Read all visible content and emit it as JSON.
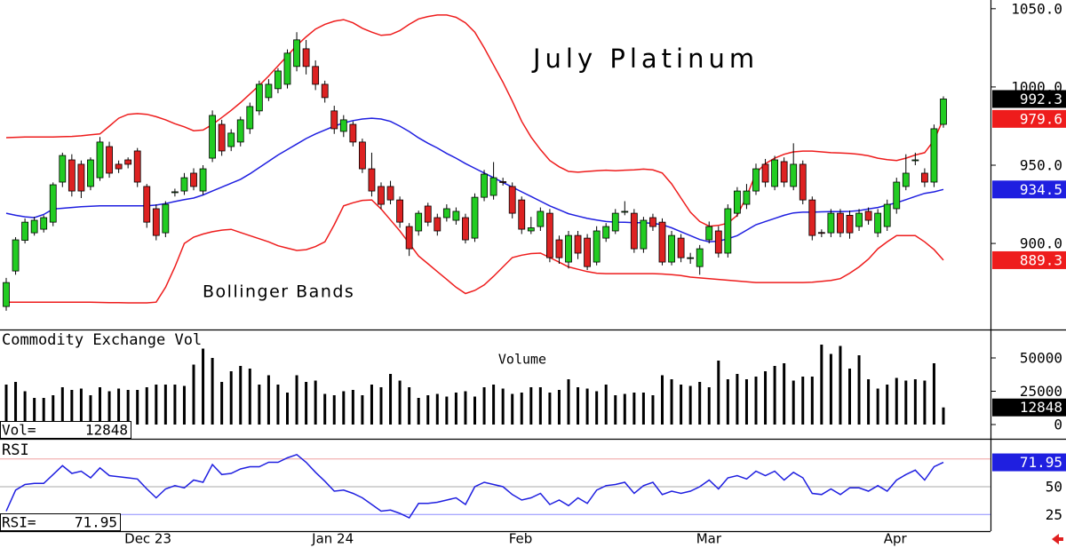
{
  "chart_data": [
    {
      "type": "candlestick",
      "title": "July Platinum",
      "annotation": "Bollinger Bands",
      "categories": [
        null,
        null,
        null,
        null,
        null,
        null,
        null,
        null,
        null,
        null,
        null,
        null,
        null,
        "Dec 23",
        null,
        null,
        null,
        null,
        null,
        null,
        null,
        null,
        null,
        null,
        null,
        null,
        null,
        null,
        null,
        null,
        null,
        null,
        null,
        "Jan 24",
        null,
        null,
        null,
        null,
        null,
        null,
        null,
        null,
        null,
        null,
        null,
        null,
        null,
        null,
        null,
        null,
        null,
        null,
        null,
        null,
        "Feb",
        null,
        null,
        null,
        null,
        null,
        null,
        null,
        null,
        null,
        null,
        null,
        null,
        null,
        null,
        null,
        null,
        null,
        null,
        null,
        "Mar",
        null,
        null,
        null,
        null,
        null,
        null,
        null,
        null,
        null,
        null,
        null,
        null,
        null,
        null,
        null,
        null,
        null,
        null,
        null,
        "Apr",
        null,
        null,
        null,
        null,
        null,
        null
      ],
      "open": [
        859.7,
        882.4,
        902,
        906.8,
        909.1,
        913.6,
        939.2,
        953.4,
        950.6,
        936.4,
        942,
        961.9,
        950.6,
        953.4,
        959.1,
        936.4,
        922.2,
        906.8,
        932.5,
        933.5,
        944.9,
        933.5,
        954.5,
        976.1,
        961.9,
        964.8,
        973.3,
        984.7,
        993.2,
        998.9,
        1001.7,
        1013.1,
        1024.4,
        1013.1,
        1001.7,
        984.7,
        971.6,
        976.1,
        964.8,
        947.7,
        936.4,
        936.4,
        927.8,
        910.8,
        908,
        923.9,
        916.5,
        916.5,
        914.8,
        916.5,
        903.4,
        929.5,
        930.7,
        939.5,
        936.4,
        927.8,
        908,
        910.8,
        919.3,
        902.3,
        888.1,
        905.1,
        903.4,
        888.1,
        903.4,
        908,
        920.3,
        919.3,
        896.6,
        916.5,
        913.6,
        888.1,
        903.4,
        890.7,
        885.2,
        902.3,
        908,
        893.8,
        919.3,
        925,
        933.5,
        950.6,
        936.4,
        952.3,
        936.4,
        950.6,
        927.8,
        907,
        906.8,
        919.3,
        918,
        910.8,
        920.5,
        906.8,
        910.8,
        922.2,
        936.4,
        953.2,
        944.9,
        939.2,
        976.1
      ],
      "high": [
        878,
        904,
        916,
        917,
        918,
        939,
        958,
        957,
        953,
        955,
        968,
        965,
        953,
        955,
        961,
        938,
        925,
        927,
        935,
        945,
        948,
        950,
        985,
        979,
        973,
        981,
        990,
        1004,
        1005,
        1012,
        1024,
        1035,
        1030,
        1017,
        1004,
        988,
        982,
        978,
        967,
        958,
        939,
        940,
        930,
        913,
        921,
        926,
        919,
        925,
        923,
        919,
        932,
        947,
        952,
        942,
        939,
        930,
        917,
        923,
        922,
        905,
        908,
        908,
        906,
        911,
        913,
        922,
        927,
        922,
        917,
        919,
        916,
        908,
        906,
        894,
        899,
        914,
        911,
        925,
        936,
        938,
        951,
        954,
        956,
        955,
        964,
        953,
        930,
        909,
        922,
        922,
        921,
        922,
        923,
        922,
        928,
        942,
        957,
        958,
        948,
        976,
        994
      ],
      "low": [
        857,
        880,
        900,
        905,
        907,
        911,
        936,
        930,
        929,
        934,
        940,
        942,
        945,
        948,
        936,
        910,
        902,
        904,
        930,
        931,
        934,
        931,
        952,
        956,
        959,
        962,
        970,
        982,
        991,
        996,
        999,
        1010,
        1008,
        998,
        990,
        970,
        968,
        962,
        945,
        930,
        922,
        925,
        910,
        892,
        905,
        911,
        905,
        914,
        912,
        900,
        901,
        927,
        928,
        937,
        916,
        906,
        906,
        908,
        888,
        887,
        884,
        890,
        883,
        886,
        901,
        906,
        918,
        894,
        894,
        908,
        886,
        886,
        888,
        887,
        880,
        900,
        891,
        891,
        917,
        922,
        931,
        936,
        934,
        936,
        934,
        925,
        902,
        904,
        904,
        904,
        903,
        908,
        912,
        904,
        908,
        919,
        934,
        950,
        936,
        936,
        974
      ],
      "close": [
        875,
        902.3,
        913.6,
        914.8,
        916.5,
        937.5,
        956.2,
        933.5,
        933.5,
        953.4,
        964.8,
        944.9,
        947.7,
        950.6,
        939.2,
        913.6,
        905.1,
        925,
        933,
        942,
        936.4,
        947.7,
        981.8,
        959.1,
        970.5,
        979,
        987.5,
        1001.7,
        1001.7,
        1010.2,
        1021.6,
        1030.1,
        1013.1,
        1001.7,
        993.2,
        973.3,
        979,
        964.8,
        947.7,
        933.5,
        925,
        927.8,
        913.6,
        896.6,
        919.3,
        913.6,
        908,
        922.2,
        920.5,
        902.3,
        929.5,
        944.3,
        942,
        939.2,
        919.3,
        909.1,
        910,
        920.5,
        890.9,
        890.9,
        905.1,
        893.8,
        885.2,
        908,
        910.8,
        919.3,
        920.5,
        896.6,
        914.8,
        910.8,
        888.1,
        905.1,
        890.9,
        890.9,
        896.6,
        910.8,
        893.8,
        922.2,
        933.5,
        933.5,
        947.7,
        939.2,
        953.4,
        939.2,
        950.6,
        927.8,
        905.1,
        906.8,
        919.3,
        906.8,
        906.8,
        919.3,
        914.8,
        919.3,
        925,
        939.2,
        944.9,
        953.4,
        939.2,
        973.3,
        992.3
      ],
      "up_color": "#22cc22",
      "down_color": "#dd2222",
      "last_color": "#000000",
      "series": [
        {
          "color": "#ee1c1c",
          "values": [
            967.6,
            967.8,
            968.0,
            968.0,
            968.0,
            968.0,
            968.2,
            968.4,
            968.8,
            969.4,
            970.0,
            975.0,
            980.0,
            982.5,
            983.0,
            982.5,
            981.0,
            979.0,
            976.5,
            974.5,
            972.0,
            972.5,
            976.0,
            980.5,
            985.0,
            990.0,
            995.5,
            1001.0,
            1007.0,
            1013.5,
            1020.0,
            1026.5,
            1032.0,
            1037.0,
            1040.0,
            1042.0,
            1043.0,
            1041.0,
            1037.5,
            1035.0,
            1033.0,
            1033.5,
            1036.0,
            1040.0,
            1043.5,
            1045.0,
            1046.0,
            1046.0,
            1044.5,
            1041.0,
            1035.0,
            1025.0,
            1014.0,
            1003.0,
            991.0,
            978.0,
            968.0,
            960.0,
            953.0,
            949.0,
            946.0,
            945.5,
            946.0,
            946.5,
            946.8,
            946.5,
            946.8,
            947.0,
            947.5,
            947.0,
            945.0,
            938.0,
            929.0,
            920.0,
            914.0,
            911.0,
            911.5,
            913.0,
            918.0,
            930.0,
            945.0,
            951.0,
            954.5,
            957.0,
            958.5,
            959.0,
            959.0,
            958.5,
            958.0,
            957.8,
            957.5,
            957.0,
            956.0,
            954.5,
            953.5,
            953.0,
            954.5,
            956.5,
            958.0,
            966.0,
            979.6
          ]
        },
        {
          "color": "#1f1fe0",
          "values": [
            919.3,
            918.0,
            917.0,
            916.5,
            918.5,
            922.0,
            922.5,
            923.0,
            923.5,
            923.8,
            924.0,
            924.0,
            924.0,
            924.0,
            924.0,
            924.0,
            924.5,
            925.5,
            926.8,
            928.0,
            929.0,
            931.0,
            933.5,
            936.0,
            938.5,
            941.0,
            944.5,
            948.5,
            952.5,
            956.5,
            960.0,
            963.5,
            967.0,
            970.0,
            972.5,
            975.0,
            977.0,
            978.5,
            979.5,
            980.0,
            979.5,
            978.0,
            975.0,
            971.5,
            967.5,
            964.0,
            961.0,
            957.5,
            954.5,
            951.0,
            948.0,
            945.0,
            942.0,
            939.0,
            936.0,
            933.0,
            930.0,
            927.0,
            924.0,
            921.5,
            919.0,
            917.5,
            916.0,
            915.0,
            914.0,
            913.6,
            913.5,
            913.3,
            913.2,
            912.8,
            912.0,
            910.0,
            907.5,
            905.0,
            902.5,
            901.0,
            901.5,
            903.0,
            905.0,
            908.5,
            912.0,
            914.0,
            916.0,
            918.0,
            919.5,
            920.0,
            920.0,
            920.2,
            920.3,
            920.4,
            920.5,
            921.0,
            922.0,
            923.0,
            924.5,
            926.0,
            928.0,
            930.0,
            932.0,
            933.0,
            934.5
          ]
        },
        {
          "color": "#ee1c1c",
          "values": [
            862.5,
            862.5,
            862.5,
            862.5,
            862.5,
            862.5,
            862.5,
            862.5,
            862.5,
            862.5,
            862.3,
            862.2,
            862.2,
            862.0,
            862.0,
            862.0,
            862.5,
            872.0,
            885.0,
            900.0,
            904.0,
            906.0,
            907.5,
            908.5,
            909.0,
            907.0,
            905.0,
            903.0,
            901.0,
            898.5,
            897.0,
            895.5,
            896.0,
            898.0,
            901.0,
            912.0,
            924.0,
            926.0,
            927.5,
            927.8,
            922.0,
            915.0,
            908.0,
            900.0,
            892.0,
            887.0,
            882.0,
            877.0,
            872.0,
            868.0,
            870.0,
            873.5,
            879.0,
            885.0,
            891.0,
            892.5,
            893.5,
            893.8,
            891.0,
            888.0,
            885.0,
            883.5,
            882.0,
            881.0,
            880.7,
            880.7,
            880.7,
            880.7,
            880.7,
            880.7,
            880.5,
            880.0,
            879.5,
            878.5,
            878.0,
            877.5,
            877.0,
            876.5,
            876.0,
            875.5,
            875.0,
            875.0,
            875.0,
            875.0,
            875.0,
            875.0,
            875.2,
            875.8,
            876.4,
            877.5,
            881.0,
            885.0,
            890.0,
            896.6,
            901.0,
            905.0,
            905.0,
            905.0,
            901.0,
            896.0,
            889.3
          ]
        }
      ],
      "ylim": [
        845,
        1055
      ],
      "yticks": [
        {
          "value": 900,
          "label": "900.0"
        },
        {
          "value": 950,
          "label": "950.0"
        },
        {
          "value": 1000,
          "label": "1000.0"
        },
        {
          "value": 1050,
          "label": "1050.0"
        }
      ]
    },
    {
      "type": "bar",
      "title": "Commodity Exchange Vol",
      "annotation": "Volume",
      "readout_label": "Vol=",
      "color": "#000000",
      "last_color": "#000000",
      "values": [
        30000,
        32000,
        25000,
        20000,
        20000,
        22000,
        28000,
        26000,
        27000,
        22000,
        28000,
        25000,
        27000,
        26000,
        26000,
        28000,
        30000,
        30000,
        30000,
        29000,
        45000,
        57000,
        50000,
        32000,
        40000,
        44000,
        42000,
        30000,
        37000,
        30000,
        24000,
        37000,
        32000,
        33000,
        23000,
        22000,
        25000,
        26000,
        22000,
        30000,
        28000,
        38000,
        33000,
        28000,
        20000,
        22000,
        23000,
        21000,
        24000,
        25000,
        21000,
        28000,
        30000,
        27000,
        23000,
        24000,
        28000,
        28000,
        24000,
        26000,
        34000,
        28000,
        27000,
        25000,
        30000,
        22000,
        23000,
        24000,
        24000,
        22000,
        37000,
        34000,
        30000,
        29000,
        32000,
        28000,
        48000,
        34000,
        38000,
        34000,
        36000,
        40000,
        44000,
        46000,
        33000,
        36000,
        36000,
        60000,
        53000,
        59000,
        42000,
        52000,
        34000,
        27000,
        30000,
        35000,
        33000,
        34000,
        33000,
        46000,
        12848
      ],
      "ylim": [
        0,
        70000
      ],
      "yticks": [
        0,
        25000,
        50000
      ]
    },
    {
      "type": "line",
      "title": "RSI",
      "readout_label": "RSI=",
      "color": "#1f1fe0",
      "last_color": "#1f1fe0",
      "values": [
        28,
        47,
        52,
        53,
        53,
        61,
        69,
        62,
        64,
        58,
        67,
        60,
        59,
        58,
        57,
        48,
        40,
        48,
        51,
        49,
        56,
        54,
        70,
        61,
        62,
        66,
        68,
        68,
        72,
        72,
        76,
        79,
        72,
        63,
        55,
        46,
        47,
        44,
        40,
        34,
        28,
        29,
        26,
        22,
        35,
        35,
        36,
        38,
        40,
        34,
        50,
        54,
        52,
        50,
        43,
        38,
        40,
        44,
        34,
        38,
        33,
        40,
        35,
        47,
        51,
        52,
        54,
        44,
        51,
        54,
        43,
        46,
        44,
        46,
        50,
        56,
        48,
        58,
        60,
        57,
        64,
        60,
        64,
        56,
        63,
        58,
        44,
        43,
        48,
        43,
        49,
        49,
        46,
        51,
        46,
        56,
        61,
        65,
        56,
        68,
        71.95
      ],
      "ylim": [
        10,
        90
      ],
      "yticks": [
        25,
        50,
        75
      ],
      "level_colors": [
        "#8c8cff",
        "#aaaaaa",
        "#f0a0a0"
      ]
    }
  ]
}
